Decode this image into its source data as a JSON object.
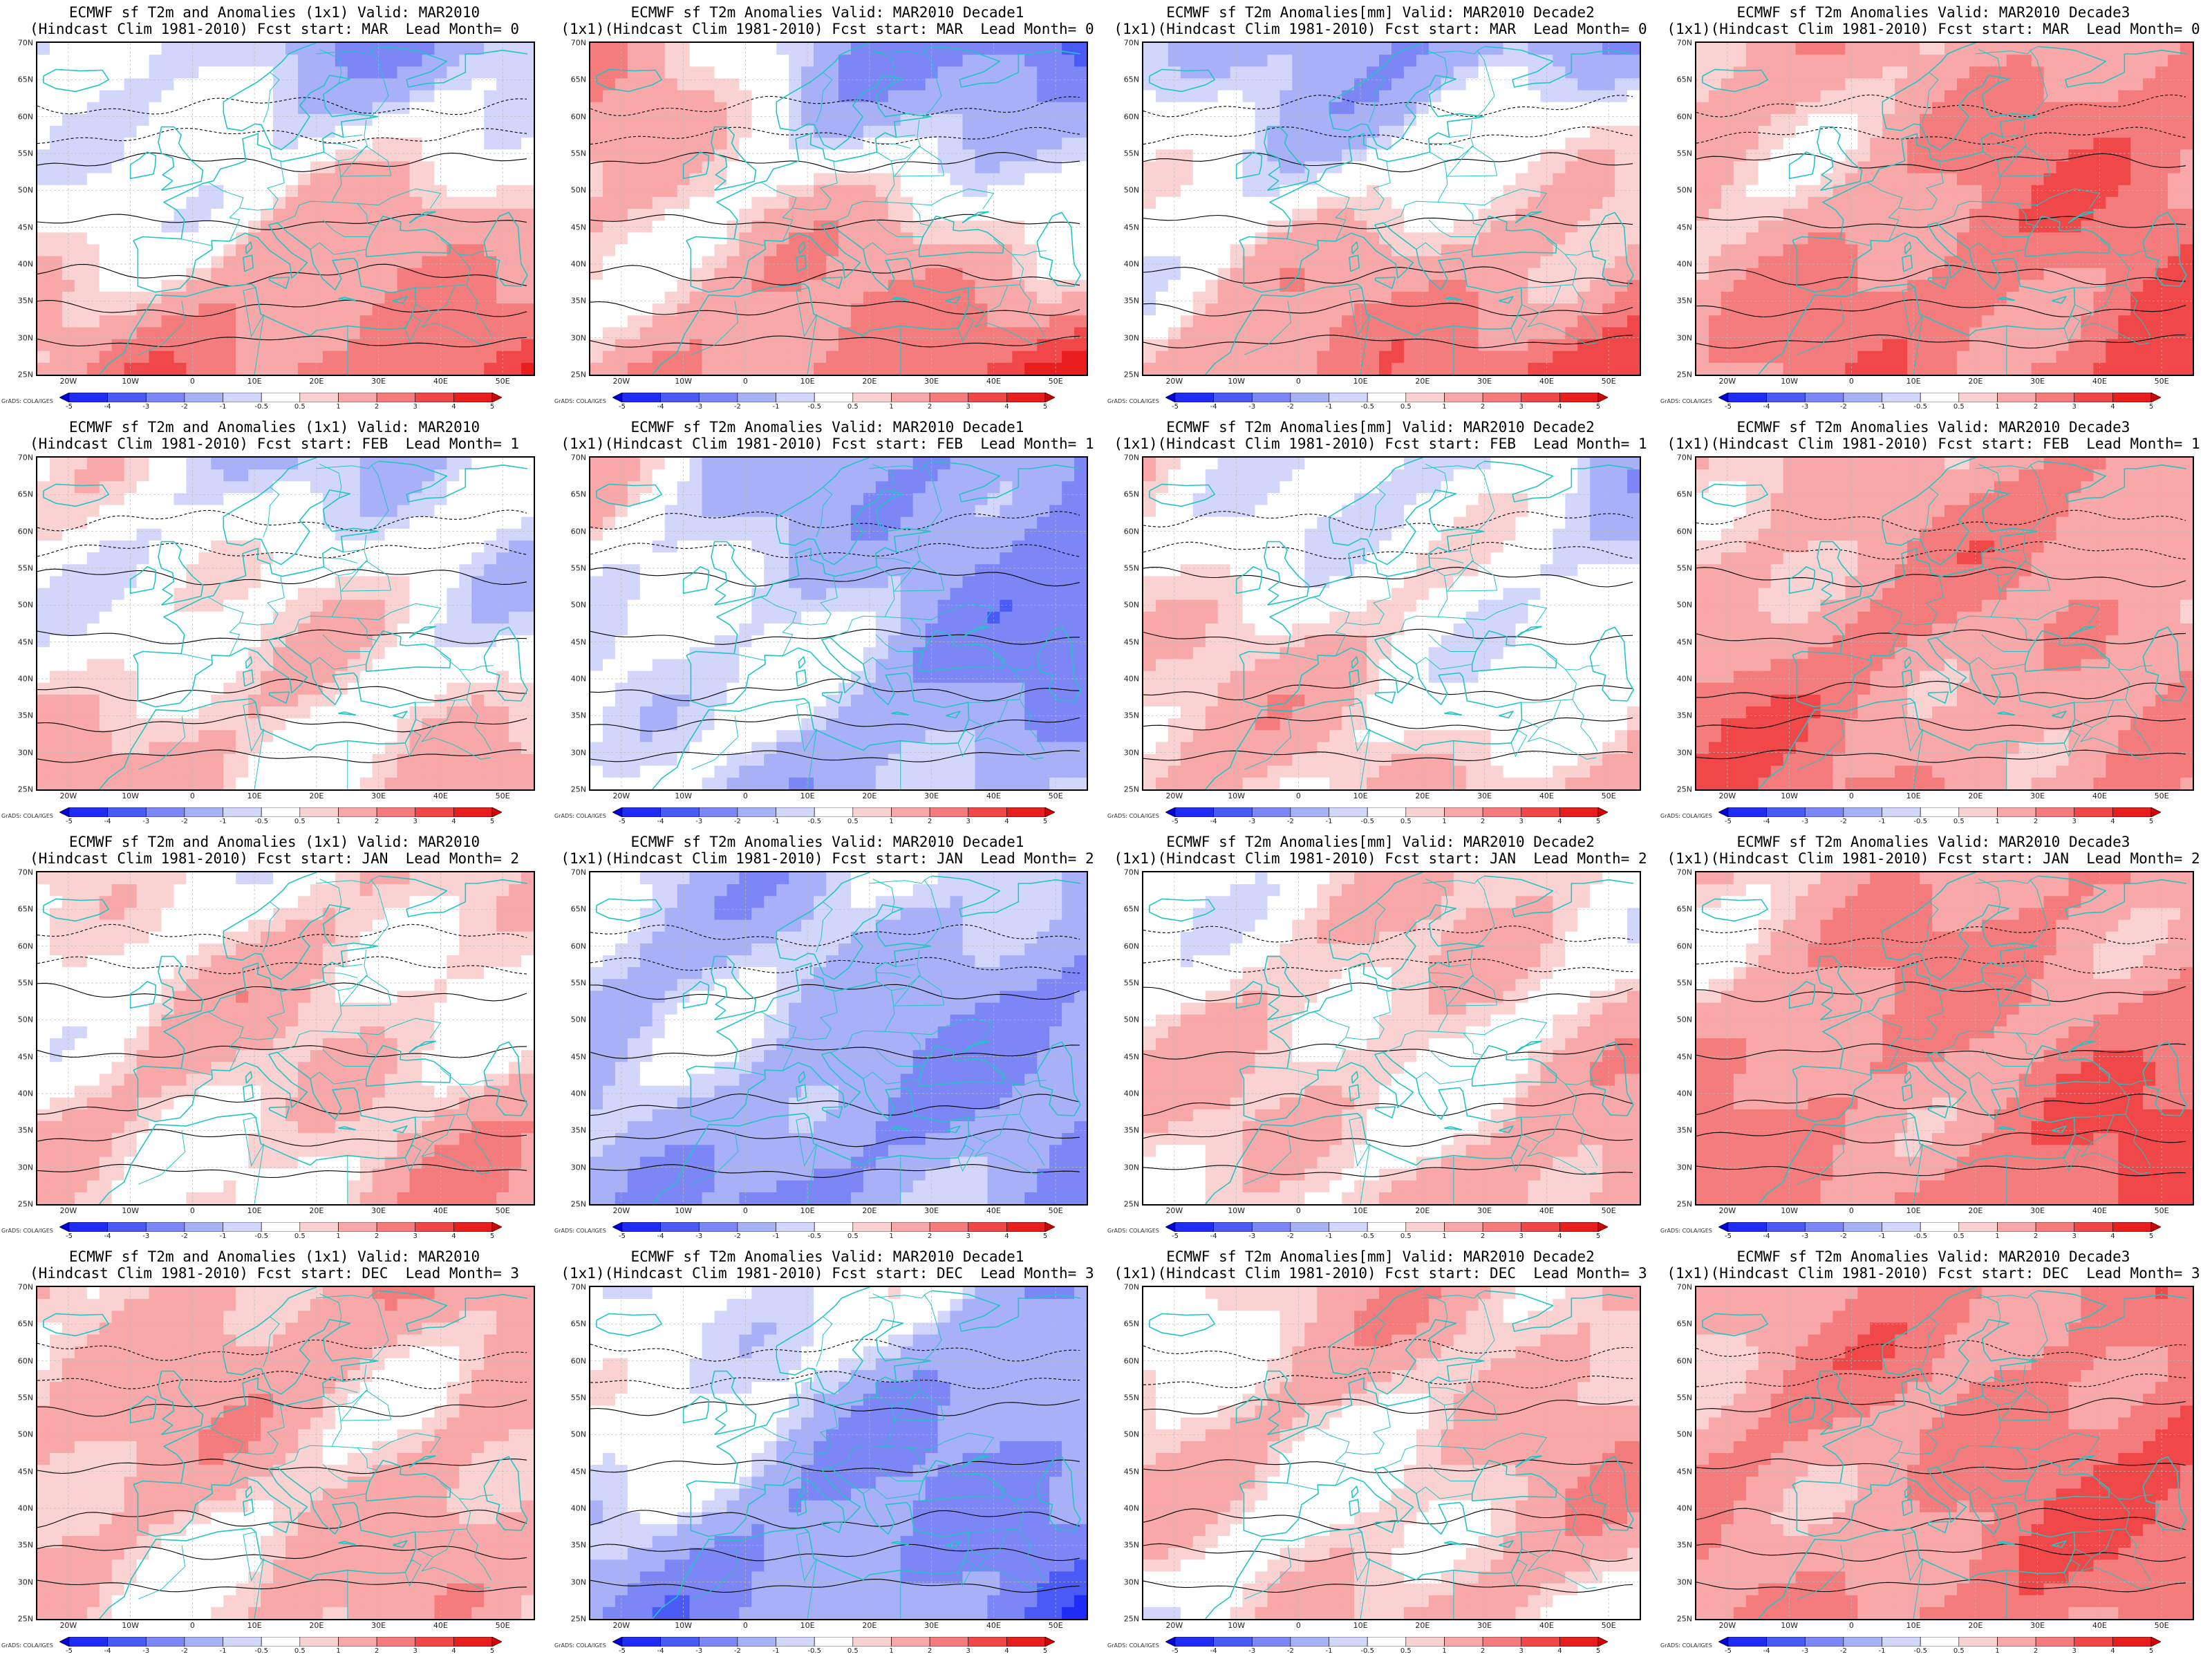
{
  "map": {
    "lat_labels": [
      "70N",
      "65N",
      "60N",
      "55N",
      "50N",
      "45N",
      "40N",
      "35N",
      "30N",
      "25N"
    ],
    "lon_labels": [
      "20W",
      "10W",
      "0",
      "10E",
      "20E",
      "30E",
      "40E",
      "50E"
    ],
    "colorbar_ticks": [
      "-5",
      "-4",
      "-3",
      "-2",
      "-1",
      "-0.5",
      "0.5",
      "1",
      "2",
      "3",
      "4",
      "5"
    ],
    "colorbar_colors": [
      "#0000dd",
      "#1e2cf5",
      "#4a5af5",
      "#7c87f5",
      "#a8b0f8",
      "#d2d6fb",
      "#ffffff",
      "#fbd2d2",
      "#f8a8a8",
      "#f57c7c",
      "#f04848",
      "#e81e1e",
      "#d20000"
    ],
    "credit": "GrADS: COLA/IGES",
    "colors": {
      "coast": "#22c4c4",
      "contour": "#000000",
      "grid": "#bbbbbb"
    }
  },
  "panels": [
    {
      "title1": "ECMWF sf T2m and Anomalies (1x1) Valid: MAR2010",
      "title2": "(Hindcast Clim 1981-2010) Fcst start: MAR  Lead Month= 0",
      "anomaly": [
        -1,
        -1.5,
        1.5,
        3.5
      ]
    },
    {
      "title1": "ECMWF sf T2m Anomalies Valid: MAR2010 Decade1",
      "title2": "(1x1)(Hindcast Clim 1981-2010) Fcst start: MAR  Lead Month= 0",
      "anomaly": [
        1.5,
        -4,
        1,
        4
      ]
    },
    {
      "title1": "ECMWF sf T2m Anomalies[mm] Valid: MAR2010 Decade2",
      "title2": "(1x1)(Hindcast Clim 1981-2010) Fcst start: MAR  Lead Month= 0",
      "anomaly": [
        -1,
        -2,
        1,
        4
      ]
    },
    {
      "title1": "ECMWF sf T2m Anomalies Valid: MAR2010 Decade3",
      "title2": "(1x1)(Hindcast Clim 1981-2010) Fcst start: MAR  Lead Month= 0",
      "anomaly": [
        1,
        2,
        1.5,
        3.5
      ]
    },
    {
      "title1": "ECMWF sf T2m and Anomalies (1x1) Valid: MAR2010",
      "title2": "(Hindcast Clim 1981-2010) Fcst start: FEB  Lead Month= 1",
      "anomaly": [
        0,
        -1,
        1,
        1
      ]
    },
    {
      "title1": "ECMWF sf T2m Anomalies Valid: MAR2010 Decade1",
      "title2": "(1x1)(Hindcast Clim 1981-2010) Fcst start: FEB  Lead Month= 1",
      "anomaly": [
        0.5,
        -3,
        -0.5,
        -1.5
      ]
    },
    {
      "title1": "ECMWF sf T2m Anomalies[mm] Valid: MAR2010 Decade2",
      "title2": "(1x1)(Hindcast Clim 1981-2010) Fcst start: FEB  Lead Month= 1",
      "anomaly": [
        0.5,
        -1.5,
        1,
        1
      ]
    },
    {
      "title1": "ECMWF sf T2m Anomalies Valid: MAR2010 Decade3",
      "title2": "(1x1)(Hindcast Clim 1981-2010) Fcst start: FEB  Lead Month= 1",
      "anomaly": [
        1,
        2,
        2.5,
        1.5
      ]
    },
    {
      "title1": "ECMWF sf T2m and Anomalies (1x1) Valid: MAR2010",
      "title2": "(Hindcast Clim 1981-2010) Fcst start: JAN  Lead Month= 2",
      "anomaly": [
        0.5,
        0.5,
        0.5,
        1.5
      ]
    },
    {
      "title1": "ECMWF sf T2m Anomalies Valid: MAR2010 Decade1",
      "title2": "(1x1)(Hindcast Clim 1981-2010) Fcst start: JAN  Lead Month= 2",
      "anomaly": [
        -0.5,
        -1.5,
        -1.5,
        -2
      ]
    },
    {
      "title1": "ECMWF sf T2m Anomalies[mm] Valid: MAR2010 Decade2",
      "title2": "(1x1)(Hindcast Clim 1981-2010) Fcst start: JAN  Lead Month= 2",
      "anomaly": [
        0.5,
        0.5,
        0.5,
        1.5
      ]
    },
    {
      "title1": "ECMWF sf T2m Anomalies Valid: MAR2010 Decade3",
      "title2": "(1x1)(Hindcast Clim 1981-2010) Fcst start: JAN  Lead Month= 2",
      "anomaly": [
        1,
        2,
        2,
        3
      ]
    },
    {
      "title1": "ECMWF sf T2m and Anomalies (1x1) Valid: MAR2010",
      "title2": "(Hindcast Clim 1981-2010) Fcst start: DEC  Lead Month= 3",
      "anomaly": [
        1,
        1.5,
        1,
        1
      ]
    },
    {
      "title1": "ECMWF sf T2m Anomalies Valid: MAR2010 Decade1",
      "title2": "(1x1)(Hindcast Clim 1981-2010) Fcst start: DEC  Lead Month= 3",
      "anomaly": [
        0.5,
        -1.5,
        -1.5,
        -3
      ]
    },
    {
      "title1": "ECMWF sf T2m Anomalies[mm] Valid: MAR2010 Decade2",
      "title2": "(1x1)(Hindcast Clim 1981-2010) Fcst start: DEC  Lead Month= 3",
      "anomaly": [
        0.5,
        1.5,
        0.5,
        1
      ]
    },
    {
      "title1": "ECMWF sf T2m Anomalies Valid: MAR2010 Decade3",
      "title2": "(1x1)(Hindcast Clim 1981-2010) Fcst start: DEC  Lead Month= 3",
      "anomaly": [
        1,
        3,
        2,
        2.5
      ]
    }
  ]
}
